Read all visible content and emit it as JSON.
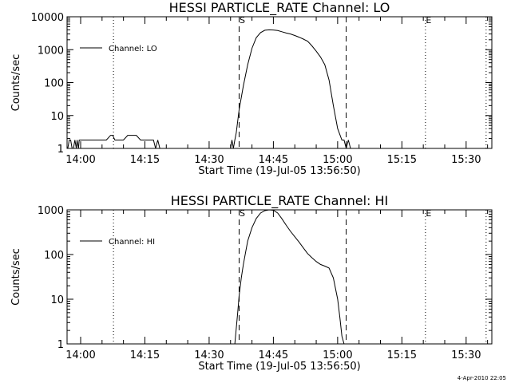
{
  "chart_data": [
    {
      "type": "line",
      "title": "HESSI PARTICLE_RATE Channel: LO",
      "xlabel": "Start Time (19-Jul-05 13:56:50)",
      "ylabel": "Counts/sec",
      "yscale": "log",
      "xlim": [
        "13:56:50",
        "15:36:00"
      ],
      "ylim": [
        1,
        10000
      ],
      "xticks": [
        "14:00",
        "14:15",
        "14:30",
        "14:45",
        "15:00",
        "15:15",
        "15:30"
      ],
      "yticks": [
        "1",
        "10",
        "100",
        "1000",
        "10000"
      ],
      "legend_position": "top-left",
      "series": [
        {
          "name": "Channel: LO",
          "x": [
            "13:57:00",
            "13:57:20",
            "13:57:40",
            "13:58:00",
            "13:58:20",
            "13:58:40",
            "13:59:00",
            "13:59:10",
            "13:59:30",
            "13:59:40",
            "14:00:00",
            "14:00:20",
            "14:01:00",
            "14:01:20",
            "14:02:00",
            "14:02:30",
            "14:03:00",
            "14:04:00",
            "14:05:00",
            "14:06:00",
            "14:07:00",
            "14:07:30",
            "14:08:00",
            "14:08:30",
            "14:09:00",
            "14:10:00",
            "14:11:00",
            "14:12:00",
            "14:13:00",
            "14:14:00",
            "14:15:00",
            "14:16:00",
            "14:17:00",
            "14:17:30",
            "14:18:00",
            "14:18:30",
            "14:19:00",
            "14:35:00",
            "14:35:20",
            "14:35:40",
            "14:36:00",
            "14:36:20",
            "14:37:00",
            "14:38:00",
            "14:39:00",
            "14:40:00",
            "14:41:00",
            "14:42:00",
            "14:43:00",
            "14:44:00",
            "14:45:00",
            "14:46:00",
            "14:47:00",
            "14:48:00",
            "14:49:00",
            "14:50:00",
            "14:51:00",
            "14:52:00",
            "14:53:00",
            "14:54:00",
            "14:55:00",
            "14:56:00",
            "14:57:00",
            "14:58:00",
            "14:59:00",
            "15:00:00",
            "15:01:00",
            "15:01:30",
            "15:02:00",
            "15:02:30",
            "15:03:00",
            "15:03:30",
            "15:04:00",
            "15:04:30"
          ],
          "values": [
            1,
            1.8,
            1.8,
            1,
            1,
            1.8,
            1,
            1.8,
            1,
            1.8,
            1.8,
            1.8,
            1.8,
            1.8,
            1.8,
            1.8,
            1.8,
            1.8,
            1.8,
            1.8,
            2.5,
            2.5,
            1.8,
            1.8,
            1.8,
            1.8,
            2.5,
            2.5,
            2.5,
            1.8,
            1.8,
            1.8,
            1.8,
            1,
            1.8,
            1,
            1,
            1,
            1.8,
            1,
            1.8,
            3,
            15,
            80,
            350,
            1100,
            2300,
            3300,
            3900,
            4000,
            3950,
            3800,
            3500,
            3200,
            3000,
            2700,
            2400,
            2100,
            1800,
            1300,
            900,
            600,
            350,
            120,
            20,
            4,
            1.8,
            1.8,
            1,
            1.8,
            1,
            1,
            1,
            1
          ]
        }
      ],
      "annotations": [
        "S",
        "E"
      ]
    },
    {
      "type": "line",
      "title": "HESSI PARTICLE_RATE Channel: HI",
      "xlabel": "Start Time (19-Jul-05 13:56:50)",
      "ylabel": "Counts/sec",
      "yscale": "log",
      "xlim": [
        "13:56:50",
        "15:36:00"
      ],
      "ylim": [
        1,
        1000
      ],
      "xticks": [
        "14:00",
        "14:15",
        "14:30",
        "14:45",
        "15:00",
        "15:15",
        "15:30"
      ],
      "yticks": [
        "1",
        "10",
        "100",
        "1000"
      ],
      "legend_position": "top-left",
      "series": [
        {
          "name": "Channel: HI",
          "x": [
            "14:36:00",
            "14:36:40",
            "14:37:00",
            "14:37:30",
            "14:38:00",
            "14:38:30",
            "14:39:00",
            "14:40:00",
            "14:41:00",
            "14:42:00",
            "14:43:00",
            "14:44:00",
            "14:45:00",
            "14:46:00",
            "14:47:00",
            "14:48:00",
            "14:49:00",
            "14:50:00",
            "14:51:00",
            "14:52:00",
            "14:53:00",
            "14:54:00",
            "14:55:00",
            "14:56:00",
            "14:57:00",
            "14:58:00",
            "14:59:00",
            "15:00:00",
            "15:00:30",
            "15:01:00",
            "15:01:30"
          ],
          "values": [
            1,
            5,
            12,
            30,
            60,
            110,
            200,
            400,
            640,
            850,
            960,
            1000,
            980,
            850,
            630,
            450,
            330,
            250,
            190,
            140,
            105,
            85,
            70,
            60,
            55,
            50,
            30,
            10,
            4,
            1.5,
            1
          ]
        }
      ],
      "annotations": [
        "S",
        "E"
      ]
    }
  ],
  "vertical_markers": {
    "dashed": [
      "14:37:00",
      "15:02:00"
    ],
    "dotted": [
      "14:07:40",
      "15:20:30",
      "15:34:40"
    ],
    "labels": [
      {
        "text": "S",
        "at": "14:37:00"
      },
      {
        "text": "E",
        "at": "15:20:30"
      }
    ]
  },
  "footer": "4-Apr-2010 22:05",
  "colors": {
    "background": "#ffffff",
    "ink": "#000000"
  }
}
